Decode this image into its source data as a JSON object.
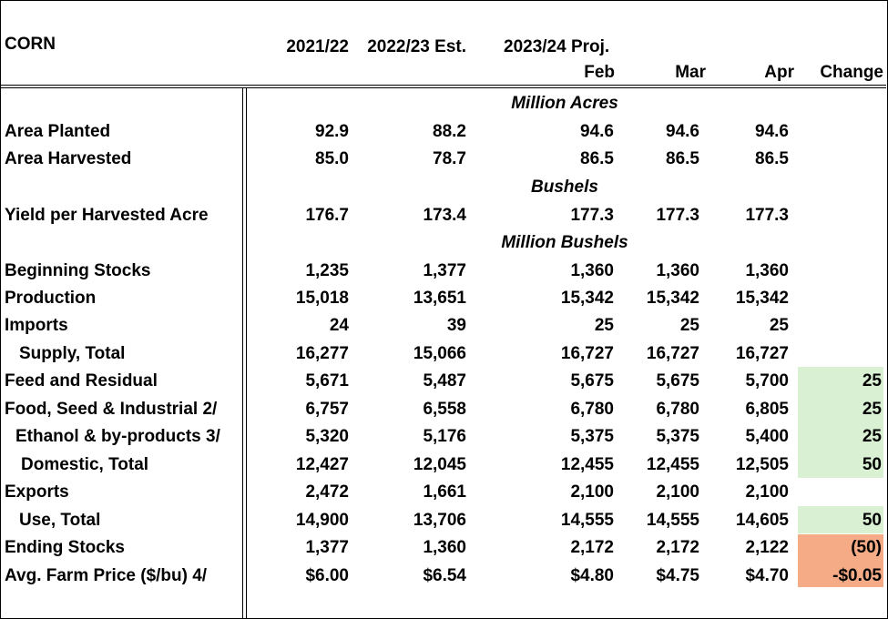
{
  "header": {
    "title": "CORN",
    "col_2122": "2021/22",
    "col_2223": "2022/23 Est.",
    "col_2324": "2023/24 Proj.",
    "col_feb": "Feb",
    "col_mar": "Mar",
    "col_apr": "Apr",
    "col_change": "Change"
  },
  "sections": {
    "acres": "Million Acres",
    "bushels": "Bushels",
    "million_bushels": "Million Bushels"
  },
  "rows": [
    {
      "label": "Area Planted",
      "v2122": "92.9",
      "v2223": "88.2",
      "feb": "94.6",
      "mar": "94.6",
      "apr": "94.6",
      "change": ""
    },
    {
      "label": "Area Harvested",
      "v2122": "85.0",
      "v2223": "78.7",
      "feb": "86.5",
      "mar": "86.5",
      "apr": "86.5",
      "change": ""
    },
    {
      "label": "Yield per Harvested Acre",
      "v2122": "176.7",
      "v2223": "173.4",
      "feb": "177.3",
      "mar": "177.3",
      "apr": "177.3",
      "change": ""
    },
    {
      "label": "Beginning Stocks",
      "v2122": "1,235",
      "v2223": "1,377",
      "feb": "1,360",
      "mar": "1,360",
      "apr": "1,360",
      "change": ""
    },
    {
      "label": "Production",
      "v2122": "15,018",
      "v2223": "13,651",
      "feb": "15,342",
      "mar": "15,342",
      "apr": "15,342",
      "change": ""
    },
    {
      "label": "Imports",
      "v2122": "24",
      "v2223": "39",
      "feb": "25",
      "mar": "25",
      "apr": "25",
      "change": ""
    },
    {
      "label": "Supply, Total",
      "v2122": "16,277",
      "v2223": "15,066",
      "feb": "16,727",
      "mar": "16,727",
      "apr": "16,727",
      "change": ""
    },
    {
      "label": "Feed and Residual",
      "v2122": "5,671",
      "v2223": "5,487",
      "feb": "5,675",
      "mar": "5,675",
      "apr": "5,700",
      "change": "25"
    },
    {
      "label": "Food, Seed & Industrial 2/",
      "v2122": "6,757",
      "v2223": "6,558",
      "feb": "6,780",
      "mar": "6,780",
      "apr": "6,805",
      "change": "25"
    },
    {
      "label": "Ethanol & by-products 3/",
      "v2122": "5,320",
      "v2223": "5,176",
      "feb": "5,375",
      "mar": "5,375",
      "apr": "5,400",
      "change": "25"
    },
    {
      "label": "Domestic, Total",
      "v2122": "12,427",
      "v2223": "12,045",
      "feb": "12,455",
      "mar": "12,455",
      "apr": "12,505",
      "change": "50"
    },
    {
      "label": "Exports",
      "v2122": "2,472",
      "v2223": "1,661",
      "feb": "2,100",
      "mar": "2,100",
      "apr": "2,100",
      "change": ""
    },
    {
      "label": "Use, Total",
      "v2122": "14,900",
      "v2223": "13,706",
      "feb": "14,555",
      "mar": "14,555",
      "apr": "14,605",
      "change": "50"
    },
    {
      "label": "Ending Stocks",
      "v2122": "1,377",
      "v2223": "1,360",
      "feb": "2,172",
      "mar": "2,172",
      "apr": "2,122",
      "change": "(50)"
    },
    {
      "label": "Avg. Farm Price ($/bu)  4/",
      "v2122": "$6.00",
      "v2223": "$6.54",
      "feb": "$4.80",
      "mar": "$4.75",
      "apr": "$4.70",
      "change": "-$0.05"
    }
  ],
  "colors": {
    "increase": "#d9f0d3",
    "decrease": "#f4ab86"
  }
}
